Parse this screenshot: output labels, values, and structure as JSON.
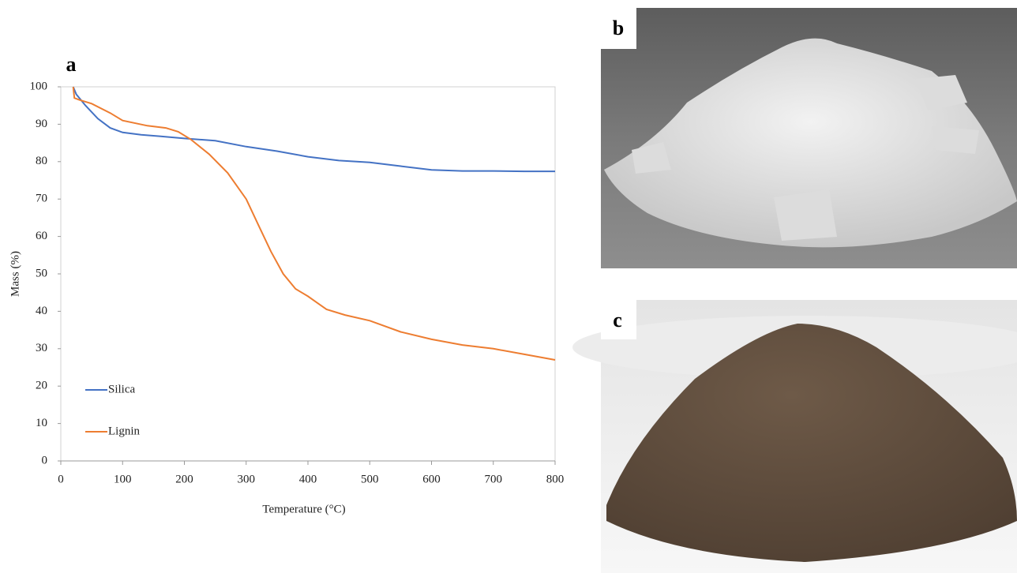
{
  "chart_data": {
    "type": "line",
    "panel_label": "a",
    "xlabel": "Temperature (°C)",
    "ylabel": "Mass (%)",
    "xlim": [
      0,
      800
    ],
    "xticks": [
      0,
      100,
      200,
      300,
      400,
      500,
      600,
      700,
      800
    ],
    "ylim": [
      0,
      100
    ],
    "yticks": [
      0,
      10,
      20,
      30,
      40,
      50,
      60,
      70,
      80,
      90,
      100
    ],
    "legend": "lower left",
    "series": [
      {
        "name": "Silica",
        "color": "#4472c4",
        "x": [
          20,
          25,
          40,
          60,
          80,
          100,
          130,
          160,
          200,
          250,
          300,
          350,
          400,
          450,
          500,
          550,
          600,
          650,
          700,
          750,
          800
        ],
        "values": [
          100,
          98,
          95,
          91.5,
          89,
          87.8,
          87.2,
          86.8,
          86.2,
          85.6,
          84,
          82.8,
          81.3,
          80.3,
          79.8,
          78.8,
          77.8,
          77.5,
          77.5,
          77.4,
          77.4
        ]
      },
      {
        "name": "Lignin",
        "color": "#ed7d31",
        "x": [
          20,
          22,
          30,
          50,
          80,
          100,
          140,
          170,
          190,
          210,
          240,
          270,
          300,
          320,
          340,
          360,
          380,
          400,
          430,
          460,
          500,
          550,
          600,
          650,
          700,
          750,
          800
        ],
        "values": [
          100,
          97,
          96.5,
          95.5,
          93,
          91,
          89.6,
          89,
          88,
          86,
          82,
          77,
          70,
          63,
          56,
          50,
          46,
          44,
          40.5,
          39,
          37.5,
          34.5,
          32.5,
          31,
          30,
          28.5,
          27
        ]
      }
    ]
  },
  "photo_labels": [
    "b",
    "c"
  ]
}
